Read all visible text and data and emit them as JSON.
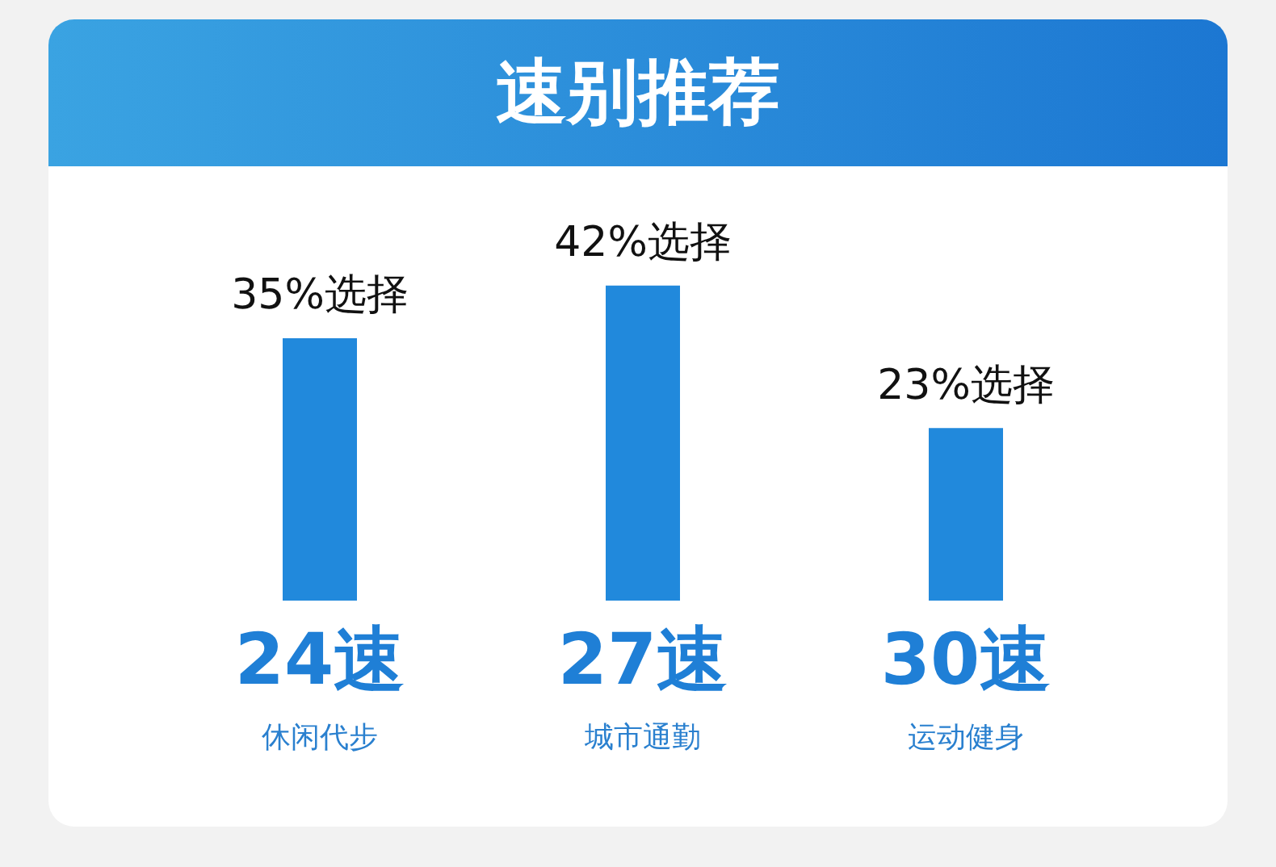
{
  "chart_data": {
    "type": "bar",
    "title": "速别推荐",
    "categories": [
      "24速",
      "27速",
      "30速"
    ],
    "annotations": [
      "休闲代步",
      "城市通勤",
      "运动健身"
    ],
    "values": [
      35,
      42,
      23
    ],
    "value_labels": [
      "35%选择",
      "42%选择",
      "23%选择"
    ],
    "color": "#2189dc"
  }
}
